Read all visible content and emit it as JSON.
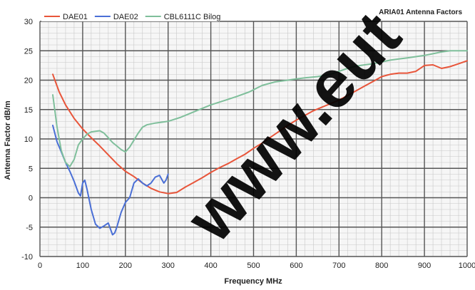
{
  "chart_data": {
    "type": "line",
    "title": "ARIA01 Antenna Factors",
    "xlabel": "Frequency MHz",
    "ylabel": "Antenna Factor dB/m",
    "xlim": [
      0,
      1000
    ],
    "ylim": [
      -10,
      30
    ],
    "x_ticks": [
      0,
      100,
      200,
      300,
      400,
      500,
      600,
      700,
      800,
      900,
      1000
    ],
    "y_ticks": [
      -10,
      -5,
      0,
      5,
      10,
      15,
      20,
      25,
      30
    ],
    "grid": true,
    "legend_position": "top-left",
    "series": [
      {
        "name": "DAE01",
        "color": "#e8553a",
        "points": [
          [
            30,
            21
          ],
          [
            45,
            18
          ],
          [
            60,
            15.8
          ],
          [
            80,
            13.5
          ],
          [
            100,
            11.7
          ],
          [
            120,
            10.2
          ],
          [
            140,
            8.8
          ],
          [
            160,
            7.3
          ],
          [
            180,
            5.8
          ],
          [
            200,
            4.5
          ],
          [
            220,
            3.6
          ],
          [
            240,
            2.5
          ],
          [
            260,
            1.6
          ],
          [
            280,
            1.0
          ],
          [
            300,
            0.7
          ],
          [
            320,
            0.9
          ],
          [
            340,
            1.8
          ],
          [
            360,
            2.6
          ],
          [
            380,
            3.4
          ],
          [
            400,
            4.3
          ],
          [
            420,
            5.1
          ],
          [
            440,
            5.8
          ],
          [
            460,
            6.6
          ],
          [
            480,
            7.4
          ],
          [
            500,
            8.4
          ],
          [
            520,
            9.3
          ],
          [
            540,
            10.3
          ],
          [
            560,
            11.3
          ],
          [
            580,
            12.3
          ],
          [
            600,
            13.2
          ],
          [
            620,
            14.0
          ],
          [
            640,
            14.8
          ],
          [
            660,
            15.4
          ],
          [
            680,
            16.0
          ],
          [
            700,
            16.6
          ],
          [
            720,
            17.4
          ],
          [
            740,
            18.2
          ],
          [
            760,
            19.0
          ],
          [
            780,
            19.8
          ],
          [
            800,
            20.6
          ],
          [
            820,
            21.0
          ],
          [
            840,
            21.2
          ],
          [
            860,
            21.2
          ],
          [
            880,
            21.5
          ],
          [
            900,
            22.5
          ],
          [
            920,
            22.6
          ],
          [
            940,
            22.0
          ],
          [
            960,
            22.3
          ],
          [
            980,
            22.8
          ],
          [
            1000,
            23.3
          ]
        ]
      },
      {
        "name": "DAE02",
        "color": "#4a6fd6",
        "points": [
          [
            30,
            12.3
          ],
          [
            40,
            9.5
          ],
          [
            50,
            7.8
          ],
          [
            60,
            6.0
          ],
          [
            70,
            4.5
          ],
          [
            80,
            2.8
          ],
          [
            90,
            0.8
          ],
          [
            95,
            0.3
          ],
          [
            100,
            2.5
          ],
          [
            105,
            3.0
          ],
          [
            110,
            1.5
          ],
          [
            120,
            -2.0
          ],
          [
            130,
            -4.5
          ],
          [
            140,
            -5.2
          ],
          [
            150,
            -4.8
          ],
          [
            160,
            -4.3
          ],
          [
            170,
            -6.3
          ],
          [
            175,
            -6.0
          ],
          [
            180,
            -5.0
          ],
          [
            190,
            -2.5
          ],
          [
            200,
            -0.8
          ],
          [
            210,
            0.0
          ],
          [
            220,
            2.5
          ],
          [
            230,
            3.2
          ],
          [
            240,
            2.5
          ],
          [
            250,
            2.0
          ],
          [
            260,
            2.5
          ],
          [
            270,
            3.5
          ],
          [
            280,
            3.8
          ],
          [
            290,
            2.5
          ],
          [
            295,
            3.0
          ],
          [
            300,
            4.0
          ]
        ]
      },
      {
        "name": "CBL6111C Bilog",
        "color": "#7fbf9b",
        "points": [
          [
            30,
            17.5
          ],
          [
            40,
            12.0
          ],
          [
            50,
            8.0
          ],
          [
            60,
            6.0
          ],
          [
            70,
            5.3
          ],
          [
            80,
            6.5
          ],
          [
            90,
            9.0
          ],
          [
            100,
            10.0
          ],
          [
            110,
            10.8
          ],
          [
            120,
            11.2
          ],
          [
            130,
            11.3
          ],
          [
            140,
            11.4
          ],
          [
            150,
            11.0
          ],
          [
            160,
            10.2
          ],
          [
            170,
            9.4
          ],
          [
            180,
            8.8
          ],
          [
            190,
            8.2
          ],
          [
            200,
            7.8
          ],
          [
            210,
            8.6
          ],
          [
            220,
            9.8
          ],
          [
            230,
            11.0
          ],
          [
            240,
            12.0
          ],
          [
            250,
            12.4
          ],
          [
            270,
            12.7
          ],
          [
            300,
            13.0
          ],
          [
            330,
            13.7
          ],
          [
            360,
            14.6
          ],
          [
            400,
            15.8
          ],
          [
            430,
            16.5
          ],
          [
            460,
            17.2
          ],
          [
            490,
            18.0
          ],
          [
            520,
            19.1
          ],
          [
            550,
            19.7
          ],
          [
            580,
            20.0
          ],
          [
            600,
            20.2
          ],
          [
            620,
            20.4
          ],
          [
            650,
            20.6
          ],
          [
            680,
            21.0
          ],
          [
            700,
            21.5
          ],
          [
            720,
            22.0
          ],
          [
            740,
            22.4
          ],
          [
            760,
            22.6
          ],
          [
            780,
            22.8
          ],
          [
            800,
            23.1
          ],
          [
            820,
            23.4
          ],
          [
            840,
            23.6
          ],
          [
            860,
            23.8
          ],
          [
            880,
            24.0
          ],
          [
            900,
            24.2
          ],
          [
            920,
            24.5
          ],
          [
            940,
            24.8
          ],
          [
            960,
            25.0
          ],
          [
            980,
            25.0
          ],
          [
            1000,
            25.0
          ]
        ]
      }
    ],
    "watermark": "www.eut"
  }
}
